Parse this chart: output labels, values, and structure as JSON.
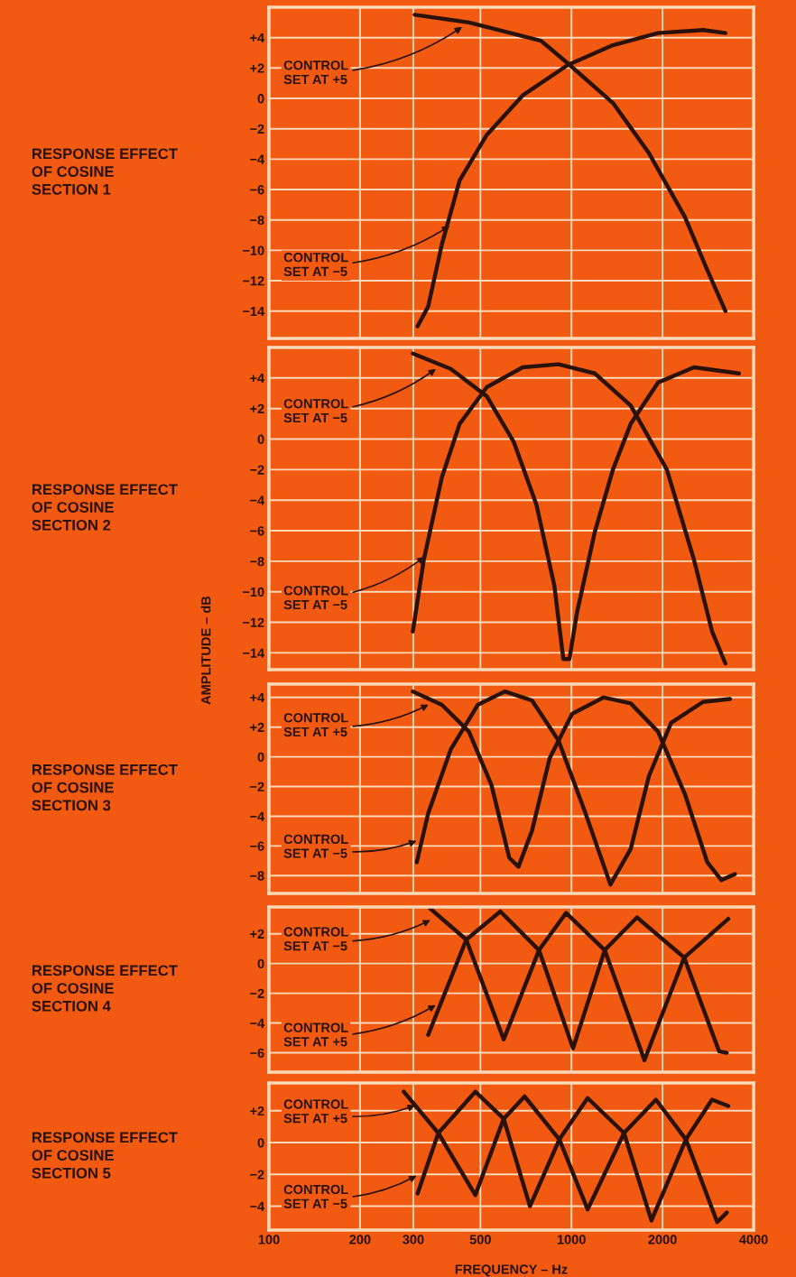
{
  "chart_data": [
    {
      "type": "line",
      "title": "RESPONSE EFFECT\nOF COSINE\nSECTION 1",
      "log": "x",
      "grid": true,
      "tick_labels": "y",
      "xlim": [
        100,
        4000
      ],
      "xticks": [
        100,
        200,
        300,
        500,
        1000,
        2000,
        4000
      ],
      "ylim": [
        -15.8,
        6
      ],
      "yticks": [
        {
          "value": -14,
          "label": "−14"
        },
        {
          "value": -12,
          "label": "−12"
        },
        {
          "value": -10,
          "label": "−10"
        },
        {
          "value": -8,
          "label": "−8"
        },
        {
          "value": -6,
          "label": "−6"
        },
        {
          "value": -4,
          "label": "−4"
        },
        {
          "value": -2,
          "label": "−2"
        },
        0,
        {
          "value": 2,
          "label": "+2"
        },
        {
          "value": 4,
          "label": "+4"
        }
      ],
      "series": [
        {
          "color": "#2a1208",
          "x": [
            303,
            458,
            792,
            973,
            1371,
            1803,
            2371,
            2812,
            3228
          ],
          "values": [
            5.5,
            5.0,
            3.8,
            2.3,
            -0.3,
            -3.6,
            -7.8,
            -11.3,
            -14
          ]
        },
        {
          "color": "#2a1208",
          "x": [
            310,
            336,
            373,
            427,
            525,
            690,
            973,
            1371,
            1932,
            2723,
            3228
          ],
          "values": [
            -15,
            -13.7,
            -9.6,
            -5.4,
            -2.4,
            0.2,
            2.2,
            3.5,
            4.3,
            4.5,
            4.3
          ]
        }
      ],
      "annotations": [
        {
          "text": "CONTROL\nSET AT +5",
          "x": 442,
          "y": 4.8
        },
        {
          "text": "CONTROL\nSET AT −5",
          "x": 402,
          "y": -8.3
        }
      ]
    },
    {
      "type": "line",
      "title": "RESPONSE EFFECT\nOF COSINE\nSECTION 2",
      "ylabel": "AMPLITUDE – dB",
      "log": "x",
      "grid": true,
      "tick_labels": "y",
      "xlim": [
        100,
        4000
      ],
      "xticks": [
        100,
        200,
        300,
        500,
        1000,
        2000,
        4000
      ],
      "ylim": [
        -15.1,
        6
      ],
      "yticks": [
        {
          "value": -14,
          "label": "−14"
        },
        {
          "value": -12,
          "label": "−12"
        },
        {
          "value": -10,
          "label": "−10"
        },
        {
          "value": -8,
          "label": "−8"
        },
        {
          "value": -6,
          "label": "−6"
        },
        {
          "value": -4,
          "label": "−4"
        },
        {
          "value": -2,
          "label": "−2"
        },
        0,
        {
          "value": 2,
          "label": "+2"
        },
        {
          "value": 4,
          "label": "+4"
        }
      ],
      "series": [
        {
          "color": "#2a1208",
          "x": [
            299,
            399,
            525,
            645,
            766,
            878,
            940,
            985,
            1042,
            1194,
            1371,
            1570,
            1932,
            2541,
            3580
          ],
          "values": [
            5.6,
            4.6,
            2.8,
            -0.2,
            -4.3,
            -9.6,
            -14.4,
            -14.4,
            -11.4,
            -6.1,
            -2.0,
            1.0,
            3.7,
            4.7,
            4.3
          ]
        },
        {
          "color": "#2a1208",
          "x": [
            299,
            325,
            373,
            427,
            525,
            690,
            906,
            1194,
            1570,
            2067,
            2541,
            2916,
            3228
          ],
          "values": [
            -12.6,
            -7.9,
            -2.5,
            1.0,
            3.4,
            4.7,
            4.9,
            4.3,
            2.2,
            -2.0,
            -7.9,
            -12.6,
            -14.7
          ]
        }
      ],
      "annotations": [
        {
          "text": "CONTROL\nSET AT −5",
          "x": 362,
          "y": 4.7
        },
        {
          "text": "CONTROL\nSET AT −5",
          "x": 332,
          "y": -7.6
        }
      ]
    },
    {
      "type": "line",
      "title": "RESPONSE EFFECT\nOF COSINE\nSECTION 3",
      "log": "x",
      "grid": true,
      "tick_labels": "y",
      "xlim": [
        100,
        4000
      ],
      "xticks": [
        100,
        200,
        300,
        500,
        1000,
        2000,
        4000
      ],
      "ylim": [
        -9.2,
        4.9
      ],
      "yticks": [
        {
          "value": -8,
          "label": "−8"
        },
        {
          "value": -6,
          "label": "−6"
        },
        {
          "value": -4,
          "label": "−4"
        },
        {
          "value": -2,
          "label": "−2"
        },
        0,
        {
          "value": 2,
          "label": "+2"
        },
        {
          "value": 4,
          "label": "+4"
        }
      ],
      "series": [
        {
          "color": "#2a1208",
          "x": [
            299,
            373,
            458,
            544,
            623,
            668,
            740,
            847,
            1005,
            1277,
            1570,
            1932,
            2371,
            2812,
            3128,
            3470
          ],
          "values": [
            4.4,
            3.5,
            1.7,
            -1.9,
            -6.8,
            -7.4,
            -5.0,
            -0.1,
            2.9,
            4.0,
            3.6,
            1.7,
            -2.5,
            -7.1,
            -8.3,
            -7.9
          ]
        },
        {
          "color": "#2a1208",
          "x": [
            308,
            336,
            399,
            490,
            602,
            740,
            906,
            1113,
            1345,
            1570,
            1803,
            2136,
            2723,
            3344
          ],
          "values": [
            -7.1,
            -3.8,
            0.5,
            3.5,
            4.4,
            3.8,
            1.1,
            -3.8,
            -8.6,
            -6.2,
            -1.3,
            2.3,
            3.7,
            3.9
          ]
        }
      ],
      "annotations": [
        {
          "text": "CONTROL\nSET AT +5",
          "x": 343,
          "y": 3.6
        },
        {
          "text": "CONTROL\nSET AT −5",
          "x": 313,
          "y": -5.6
        }
      ]
    },
    {
      "type": "line",
      "title": "RESPONSE EFFECT\nOF COSINE\nSECTION 4",
      "log": "x",
      "grid": true,
      "tick_labels": "y",
      "xlim": [
        100,
        4000
      ],
      "xticks": [
        100,
        200,
        300,
        500,
        1000,
        2000,
        4000
      ],
      "ylim": [
        -7.3,
        3.8
      ],
      "yticks": [
        {
          "value": -6,
          "label": "−6"
        },
        {
          "value": -4,
          "label": "−4"
        },
        {
          "value": -2,
          "label": "−2"
        },
        0,
        {
          "value": 2,
          "label": "+2"
        }
      ],
      "series": [
        {
          "color": "#2a1208",
          "x": [
            341,
            449,
            597,
            781,
            960,
            1288,
            1743,
            2358,
            3300
          ],
          "values": [
            3.7,
            1.6,
            -5.1,
            0.9,
            3.4,
            0.9,
            -6.5,
            0.4,
            3.0
          ]
        },
        {
          "color": "#2a1208",
          "x": [
            336,
            449,
            582,
            781,
            1012,
            1288,
            1647,
            2358,
            3078,
            3262
          ],
          "values": [
            -4.8,
            1.6,
            3.5,
            0.9,
            -5.7,
            0.9,
            3.1,
            0.4,
            -5.9,
            -6.0
          ]
        }
      ],
      "annotations": [
        {
          "text": "CONTROL\nSET AT −5",
          "x": 348,
          "y": 3.0
        },
        {
          "text": "CONTROL\nSET AT +5",
          "x": 362,
          "y": -2.7
        }
      ]
    },
    {
      "type": "line",
      "title": "RESPONSE EFFECT\nOF COSINE\nSECTION 5",
      "xlabel": "FREQUENCY – Hz",
      "log": "x",
      "grid": true,
      "xlim": [
        100,
        4000
      ],
      "xticks": [
        100,
        200,
        300,
        500,
        1000,
        2000,
        4000
      ],
      "ylim": [
        -5.5,
        3.75
      ],
      "yticks": [
        {
          "value": -4,
          "label": "−4"
        },
        {
          "value": -2,
          "label": "−2"
        },
        0,
        {
          "value": 2,
          "label": "+2"
        }
      ],
      "series": [
        {
          "color": "#2a1208",
          "x": [
            279,
            363,
            481,
            597,
            700,
            912,
            1131,
            1492,
            1902,
            2390,
            3033,
            3262
          ],
          "values": [
            3.2,
            0.6,
            -3.3,
            1.5,
            2.9,
            0.2,
            -4.2,
            0.6,
            2.7,
            0.2,
            -5.0,
            -4.4
          ]
        },
        {
          "color": "#2a1208",
          "x": [
            310,
            363,
            481,
            597,
            729,
            912,
            1131,
            1492,
            1838,
            2390,
            2914,
            3300
          ],
          "values": [
            -3.2,
            0.6,
            3.2,
            1.5,
            -4.0,
            0.2,
            2.8,
            0.6,
            -4.9,
            0.2,
            2.7,
            2.3
          ]
        }
      ],
      "annotations": [
        {
          "text": "CONTROL\nSET AT +5",
          "x": 310,
          "y": 2.4
        },
        {
          "text": "CONTROL\nSET AT −5",
          "x": 313,
          "y": -2.0
        }
      ]
    }
  ]
}
